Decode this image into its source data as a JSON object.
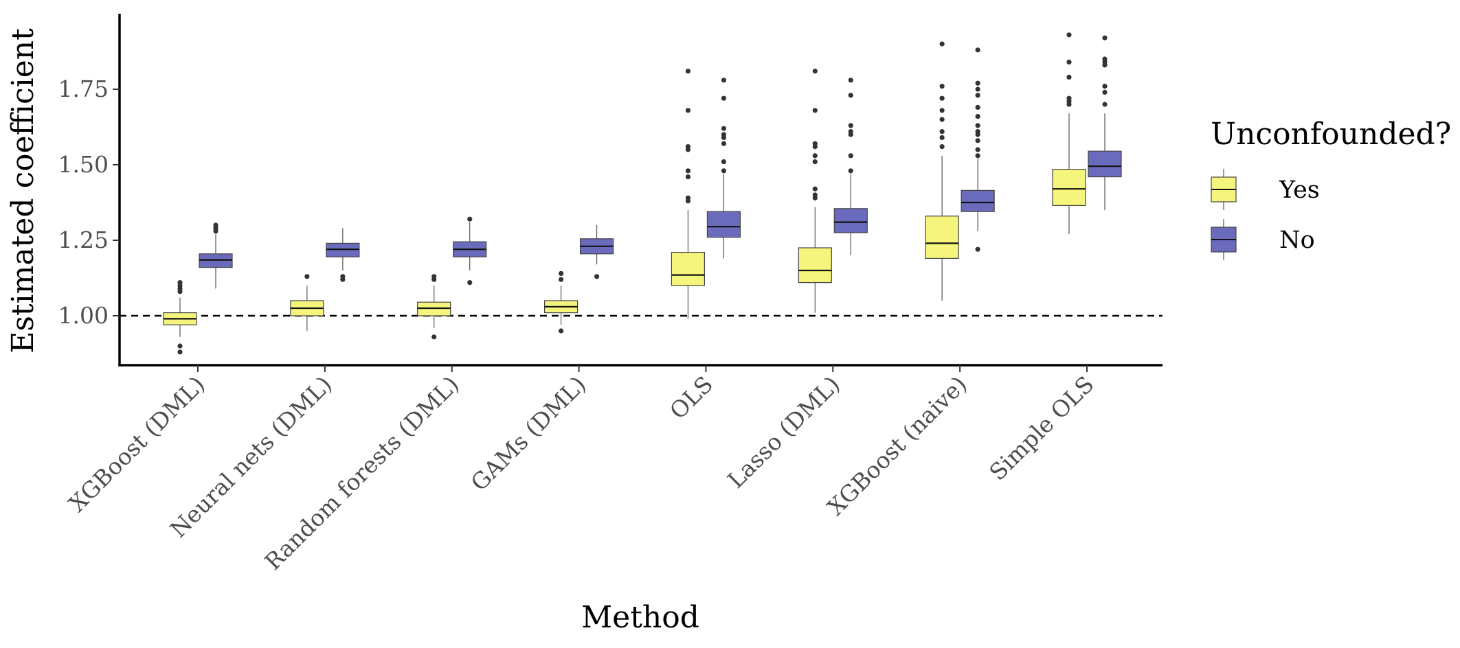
{
  "chart_data": {
    "type": "boxplot",
    "xlabel": "Method",
    "ylabel": "Estimated coefficient",
    "ylim": [
      0.84,
      1.95
    ],
    "yticks": [
      1.0,
      1.25,
      1.5,
      1.75
    ],
    "ytick_labels": [
      "1.00",
      "1.25",
      "1.50",
      "1.75"
    ],
    "reference_line": {
      "y": 1.0,
      "style": "dashed"
    },
    "grid": false,
    "legend": {
      "title": "Unconfounded?",
      "position": "right",
      "entries": [
        {
          "label": "Yes",
          "color": "#f5f57d"
        },
        {
          "label": "No",
          "color": "#6b6bbd"
        }
      ]
    },
    "categories": [
      "XGBoost (DML)",
      "Neural nets (DML)",
      "Random forests (DML)",
      "GAMs (DML)",
      "OLS",
      "Lasso (DML)",
      "XGBoost (naive)",
      "Simple OLS"
    ],
    "series": [
      {
        "name": "Yes",
        "color": "#f5f57d",
        "boxes": [
          {
            "min": 0.93,
            "q1": 0.97,
            "median": 0.99,
            "q3": 1.01,
            "max": 1.06,
            "outliers": [
              1.08,
              1.09,
              1.1,
              1.11,
              0.9,
              0.88
            ]
          },
          {
            "min": 0.95,
            "q1": 1.0,
            "median": 1.025,
            "q3": 1.05,
            "max": 1.1,
            "outliers": [
              1.13
            ]
          },
          {
            "min": 0.96,
            "q1": 1.0,
            "median": 1.025,
            "q3": 1.045,
            "max": 1.1,
            "outliers": [
              1.12,
              1.13,
              0.93
            ]
          },
          {
            "min": 0.97,
            "q1": 1.01,
            "median": 1.03,
            "q3": 1.05,
            "max": 1.1,
            "outliers": [
              1.12,
              1.14,
              0.95
            ]
          },
          {
            "min": 0.99,
            "q1": 1.1,
            "median": 1.135,
            "q3": 1.21,
            "max": 1.35,
            "outliers": [
              1.38,
              1.39,
              1.46,
              1.48,
              1.55,
              1.56,
              1.68,
              1.81
            ]
          },
          {
            "min": 1.01,
            "q1": 1.11,
            "median": 1.15,
            "q3": 1.225,
            "max": 1.36,
            "outliers": [
              1.39,
              1.4,
              1.42,
              1.51,
              1.53,
              1.56,
              1.57,
              1.68,
              1.81
            ]
          },
          {
            "min": 1.05,
            "q1": 1.19,
            "median": 1.24,
            "q3": 1.33,
            "max": 1.53,
            "outliers": [
              1.56,
              1.59,
              1.61,
              1.65,
              1.68,
              1.72,
              1.76,
              1.9
            ]
          },
          {
            "min": 1.27,
            "q1": 1.365,
            "median": 1.42,
            "q3": 1.485,
            "max": 1.67,
            "outliers": [
              1.7,
              1.71,
              1.72,
              1.79,
              1.84,
              1.93
            ]
          }
        ]
      },
      {
        "name": "No",
        "color": "#6b6bbd",
        "boxes": [
          {
            "min": 1.09,
            "q1": 1.16,
            "median": 1.185,
            "q3": 1.205,
            "max": 1.27,
            "outliers": [
              1.28,
              1.29,
              1.3
            ]
          },
          {
            "min": 1.15,
            "q1": 1.195,
            "median": 1.22,
            "q3": 1.24,
            "max": 1.29,
            "outliers": [
              1.13,
              1.12
            ]
          },
          {
            "min": 1.15,
            "q1": 1.195,
            "median": 1.22,
            "q3": 1.245,
            "max": 1.31,
            "outliers": [
              1.32,
              1.11
            ]
          },
          {
            "min": 1.17,
            "q1": 1.205,
            "median": 1.23,
            "q3": 1.255,
            "max": 1.3,
            "outliers": [
              1.13
            ]
          },
          {
            "min": 1.19,
            "q1": 1.26,
            "median": 1.295,
            "q3": 1.345,
            "max": 1.47,
            "outliers": [
              1.48,
              1.51,
              1.57,
              1.59,
              1.6,
              1.62,
              1.72,
              1.78
            ]
          },
          {
            "min": 1.2,
            "q1": 1.275,
            "median": 1.31,
            "q3": 1.355,
            "max": 1.47,
            "outliers": [
              1.48,
              1.53,
              1.6,
              1.61,
              1.63,
              1.73,
              1.78
            ]
          },
          {
            "min": 1.28,
            "q1": 1.345,
            "median": 1.375,
            "q3": 1.415,
            "max": 1.52,
            "outliers": [
              1.53,
              1.55,
              1.58,
              1.6,
              1.61,
              1.63,
              1.66,
              1.69,
              1.73,
              1.75,
              1.77,
              1.88,
              1.22
            ]
          },
          {
            "min": 1.35,
            "q1": 1.46,
            "median": 1.495,
            "q3": 1.545,
            "max": 1.67,
            "outliers": [
              1.7,
              1.74,
              1.76,
              1.83,
              1.84,
              1.85,
              1.92
            ]
          }
        ]
      }
    ]
  }
}
